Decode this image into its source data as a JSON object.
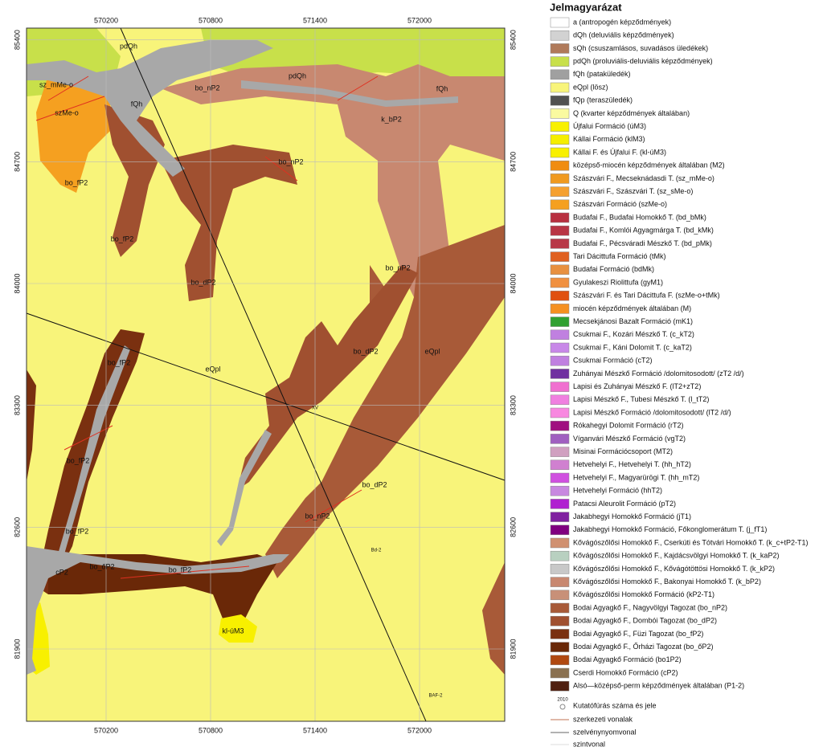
{
  "map": {
    "xticks": [
      570200,
      570800,
      571400,
      572000
    ],
    "yticks": [
      81900,
      82600,
      83300,
      84000,
      84700,
      85400
    ],
    "labels": [
      "pdQh",
      "sz_mMe-o",
      "szMe-o",
      "fQh",
      "bo_nP2",
      "pdQh",
      "fQh",
      "k_bP2",
      "bo_nP2",
      "bo_fP2",
      "bo_fP2",
      "bo_dP2",
      "bo_nP2",
      "bo_dP2",
      "eQpl",
      "bo_fP2",
      "eQpl",
      "XV",
      "bo_fP2",
      "bo_dP2",
      "bo_nP2",
      "bo_fP2",
      "Bd-2",
      "cP2",
      "bo_őP2",
      "bo_fP2",
      "kl-úM3",
      "BAF-2"
    ]
  },
  "legend": {
    "title": "Jelmagyarázat",
    "items": [
      {
        "name": "a (antropogén képződmények)",
        "color": "#ffffff"
      },
      {
        "name": "dQh (deluviális képződmények)",
        "color": "#d2d2d2"
      },
      {
        "name": "sQh (csuszamlásos, suvadásos üledékek)",
        "color": "#b07a5a"
      },
      {
        "name": "pdQh (proluviális-deluviális képződmények)",
        "color": "#c8e04a"
      },
      {
        "name": "fQh (pataküledék)",
        "color": "#a0a0a0"
      },
      {
        "name": "eQpl (lösz)",
        "color": "#f8f47a"
      },
      {
        "name": "fQp (teraszüledék)",
        "color": "#505050"
      },
      {
        "name": "Q (kvarter képződmények általában)",
        "color": "#fafaa0"
      },
      {
        "name": "Újfalui Formáció (úM3)",
        "color": "#f8f000"
      },
      {
        "name": "Kállai Formáció (klM3)",
        "color": "#f5ee00"
      },
      {
        "name": "Kállai F. és Újfalui F. (kl-úM3)",
        "color": "#f8f000"
      },
      {
        "name": "középső-miocén képződmények általában (M2)",
        "color": "#f08c10"
      },
      {
        "name": "Szászvári F., Mecseknádasdi T. (sz_mMe-o)",
        "color": "#f09a20"
      },
      {
        "name": "Szászvári F., Szászvári T. (sz_sMe-o)",
        "color": "#f5a030"
      },
      {
        "name": "Szászvári Formáció (szMe-o)",
        "color": "#f5a020"
      },
      {
        "name": "Budafai F., Budafai Homokkő T. (bd_bMk)",
        "color": "#b83040"
      },
      {
        "name": "Budafai F., Komlói Agyagmárga T. (bd_kMk)",
        "color": "#b83545"
      },
      {
        "name": "Budafai F., Pécsváradi Mészkő T. (bd_pMk)",
        "color": "#b83848"
      },
      {
        "name": "Tari Dácittufa Formáció (tMk)",
        "color": "#e06020"
      },
      {
        "name": "Budafai Formáció (bdMk)",
        "color": "#e89040"
      },
      {
        "name": "Gyulakeszi Riolittufa (gyM1)",
        "color": "#f09040"
      },
      {
        "name": "Szászvári F. és Tari Dácittufa F. (szMe-o+tMk)",
        "color": "#e05010"
      },
      {
        "name": "miocén képződmények általában (M)",
        "color": "#f59020"
      },
      {
        "name": "Mecsekjánosi Bazalt Formáció (mK1)",
        "color": "#30a030"
      },
      {
        "name": "Csukmai F., Kozári Mészkő T. (c_kT2)",
        "color": "#c080e0"
      },
      {
        "name": "Csukmai F., Káni Dolomit T. (c_kaT2)",
        "color": "#c888e8"
      },
      {
        "name": "Csukmai Formáció (cT2)",
        "color": "#c080e0"
      },
      {
        "name": "Zuhányai Mészkő Formáció /dolomitosodott/ (zT2 /d/)",
        "color": "#7030a0"
      },
      {
        "name": "Lapisi és Zuhányai Mészkő F. (lT2+zT2)",
        "color": "#f070d0"
      },
      {
        "name": "Lapisi Mészkő F., Tubesi Mészkő T. (l_tT2)",
        "color": "#f080e0"
      },
      {
        "name": "Lapisi Mészkő Formáció /dolomitosodott/ (lT2 /d/)",
        "color": "#f888e0"
      },
      {
        "name": "Rókahegyi Dolomit Formáció (rT2)",
        "color": "#a01080"
      },
      {
        "name": "Víganvári Mészkő Formáció (vgT2)",
        "color": "#a060c0"
      },
      {
        "name": "Misinai Formációcsoport (MT2)",
        "color": "#d0a0c0"
      },
      {
        "name": "Hetvehelyi F., Hetvehelyi T. (hh_hT2)",
        "color": "#d080d0"
      },
      {
        "name": "Hetvehelyi F., Magyarürögi T. (hh_mT2)",
        "color": "#d050e0"
      },
      {
        "name": "Hetvehelyi Formáció (hhT2)",
        "color": "#c888e0"
      },
      {
        "name": "Patacsi Aleurolit Formáció (pT2)",
        "color": "#b020d0"
      },
      {
        "name": "Jakabhegyi Homokkő Formáció (jT1)",
        "color": "#8020a0"
      },
      {
        "name": "Jakabhegyi Homokkő Formáció, Főkonglomerátum T. (j_fT1)",
        "color": "#800080"
      },
      {
        "name": "Kővágószőlősi Homokkő F., Cserkúti és Tótvári Homokkő T. (k_c+tP2-T1)",
        "color": "#d09070"
      },
      {
        "name": "Kővágószőlősi Homokkő F., Kajdácsvölgyi Homokkő T. (k_kaP2)",
        "color": "#b8d0c0"
      },
      {
        "name": "Kővágószőlősi Homokkő F., Kővágótöttösi Homokkő T. (k_kP2)",
        "color": "#c8c8c8"
      },
      {
        "name": "Kővágószőlősi Homokkő F., Bakonyai Homokkő T. (k_bP2)",
        "color": "#c88870"
      },
      {
        "name": "Kővágószőlősi Homokkő Formáció (kP2-T1)",
        "color": "#c89078"
      },
      {
        "name": "Bodai Agyagkő F., Nagyvölgyi Tagozat (bo_nP2)",
        "color": "#a85a38"
      },
      {
        "name": "Bodai Agyagkő F., Dombói Tagozat (bo_dP2)",
        "color": "#a05030"
      },
      {
        "name": "Bodai Agyagkő F., Füzi Tagozat (bo_fP2)",
        "color": "#7a3010"
      },
      {
        "name": "Bodai Agyagkő F., Őrházi Tagozat (bo_őP2)",
        "color": "#6a2808"
      },
      {
        "name": "Bodai Agyagkő Formáció (bo1P2)",
        "color": "#b04810"
      },
      {
        "name": "Cserdi Homokkő Formáció (cP2)",
        "color": "#8a7050"
      },
      {
        "name": "Alsó—középső-perm képződmények általában (P1-2)",
        "color": "#502010"
      }
    ],
    "borehole_year": "2010",
    "borehole": "Kutatófúrás száma és jele",
    "structural": "szerkezeti vonalak",
    "section": "szelvénynyomvonal",
    "contour": "szintvonal"
  }
}
